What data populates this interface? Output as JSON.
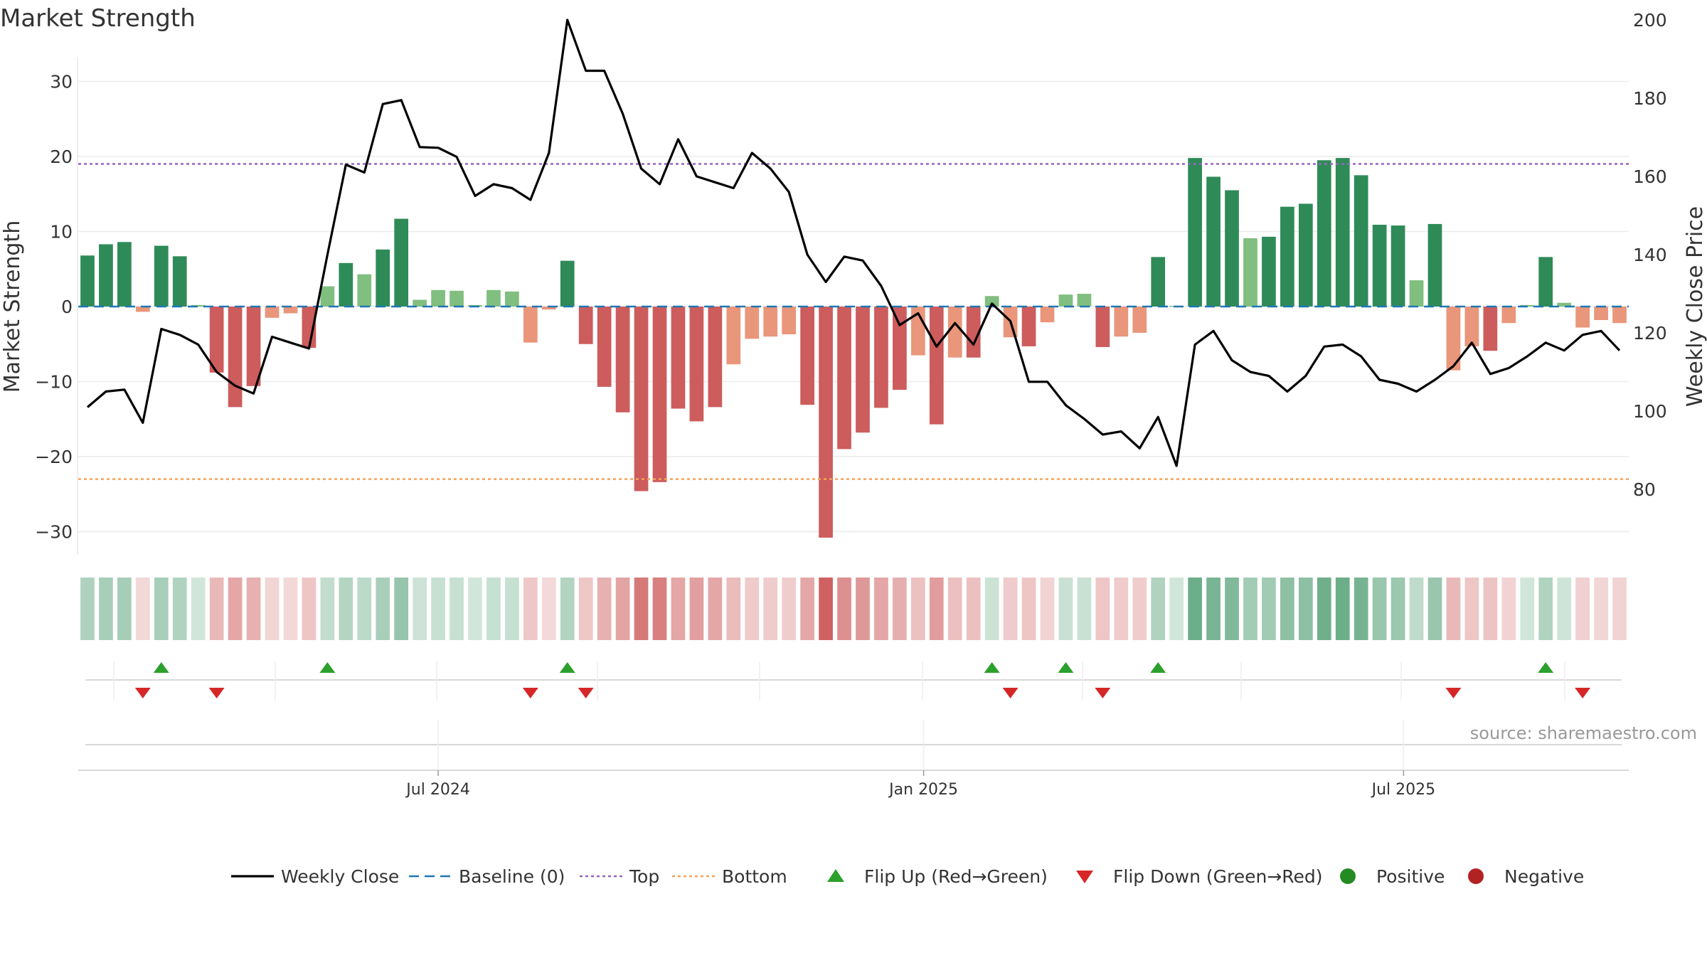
{
  "title": "Market Strength",
  "source_label": "source: sharemaestro.com",
  "colors": {
    "strong_pos": "#2e8b57",
    "weak_pos": "#80bf7f",
    "strong_neg": "#cd5c5c",
    "weak_neg": "#e9967a",
    "close": "#000000",
    "baseline": "#1f77b4",
    "top": "#9467bd",
    "bottom": "#f4a35a",
    "flip_up": "#2ca02c",
    "flip_down": "#d62728",
    "positive": "#228b22",
    "negative": "#b22222"
  },
  "chart_data": {
    "type": "bar",
    "title": "Market Strength",
    "ylabel_left": "Market Strength",
    "ylabel_right": "Weekly Close Price",
    "ylim_left": [
      -33,
      33
    ],
    "ylim_right": [
      80,
      205
    ],
    "yticks_left": [
      {
        "v": 30,
        "label": "30"
      },
      {
        "v": 20,
        "label": "20"
      },
      {
        "v": 10,
        "label": "10"
      },
      {
        "v": 0,
        "label": "0"
      },
      {
        "v": -10,
        "label": "−10"
      },
      {
        "v": -20,
        "label": "−20"
      },
      {
        "v": -30,
        "label": "−30"
      }
    ],
    "yticks_right": [
      {
        "v": 200,
        "label": "200"
      },
      {
        "v": 180,
        "label": "180"
      },
      {
        "v": 160,
        "label": "160"
      },
      {
        "v": 140,
        "label": "140"
      },
      {
        "v": 120,
        "label": "120"
      },
      {
        "v": 100,
        "label": "100"
      },
      {
        "v": 80,
        "label": "80"
      }
    ],
    "top_level": 19,
    "bottom_level": -23,
    "x_ticks": [
      {
        "index": 19.5,
        "label": "Jul 2024"
      },
      {
        "index": 45.8,
        "label": "Jan 2025"
      },
      {
        "index": 71.8,
        "label": "Jul 2025"
      }
    ],
    "strength": [
      6.8,
      8.3,
      8.6,
      -0.7,
      8.1,
      6.7,
      0.2,
      -8.8,
      -13.4,
      -10.6,
      -1.5,
      -0.9,
      -5.5,
      2.7,
      5.8,
      4.3,
      7.6,
      11.7,
      0.9,
      2.2,
      2.1,
      0.2,
      2.2,
      2.0,
      -4.8,
      -0.4,
      6.1,
      -5.0,
      -10.7,
      -14.1,
      -24.6,
      -23.4,
      -13.6,
      -15.3,
      -13.4,
      -7.7,
      -4.3,
      -4.0,
      -3.7,
      -13.1,
      -30.8,
      -19.0,
      -16.8,
      -13.5,
      -11.1,
      -6.5,
      -15.7,
      -6.8,
      -6.8,
      1.4,
      -4.1,
      -5.3,
      -2.1,
      1.6,
      1.7,
      -5.4,
      -4.0,
      -3.5,
      6.6,
      0.1,
      19.8,
      17.3,
      15.5,
      9.1,
      9.3,
      13.3,
      13.7,
      19.5,
      19.8,
      17.5,
      10.9,
      10.8,
      3.5,
      11.0,
      -8.5,
      -5.3,
      -5.9,
      -2.2,
      0.2,
      6.6,
      0.5,
      -2.8,
      -1.8,
      -2.2
    ],
    "close": [
      101,
      105,
      105.5,
      97,
      121,
      119.5,
      117,
      110,
      106.5,
      104.5,
      119,
      117.5,
      116,
      140,
      163,
      161,
      178.5,
      179.5,
      167.5,
      167.3,
      165,
      155,
      158,
      157,
      154,
      166,
      200,
      187,
      187,
      176,
      162,
      158,
      169.5,
      160,
      158.5,
      157,
      166,
      162,
      156,
      140,
      133,
      139.5,
      138.5,
      132,
      122,
      125,
      116.5,
      122.5,
      117,
      127.5,
      123,
      107.5,
      107.5,
      101.5,
      98,
      94,
      94.8,
      90.5,
      98.5,
      86,
      117,
      120.5,
      113,
      110,
      109,
      105,
      109,
      116.5,
      117,
      114,
      108,
      107,
      105,
      108,
      111.5,
      117.5,
      109.5,
      111,
      114,
      117.5,
      115.5,
      119.5,
      120.5,
      115.5
    ],
    "flip_up_indices": [
      4,
      13,
      26,
      49,
      53,
      58,
      79
    ],
    "flip_down_indices": [
      3,
      7,
      24,
      27,
      50,
      55,
      74,
      81
    ],
    "legend": [
      {
        "key": "close",
        "label": "Weekly Close"
      },
      {
        "key": "baseline",
        "label": "Baseline (0)"
      },
      {
        "key": "top",
        "label": "Top"
      },
      {
        "key": "bottom",
        "label": "Bottom"
      },
      {
        "key": "flip_up",
        "label": "Flip Up (Red→Green)"
      },
      {
        "key": "flip_down",
        "label": "Flip Down (Green→Red)"
      },
      {
        "key": "positive",
        "label": "Positive"
      },
      {
        "key": "negative",
        "label": "Negative"
      }
    ],
    "legend_position": "bottom-center"
  }
}
